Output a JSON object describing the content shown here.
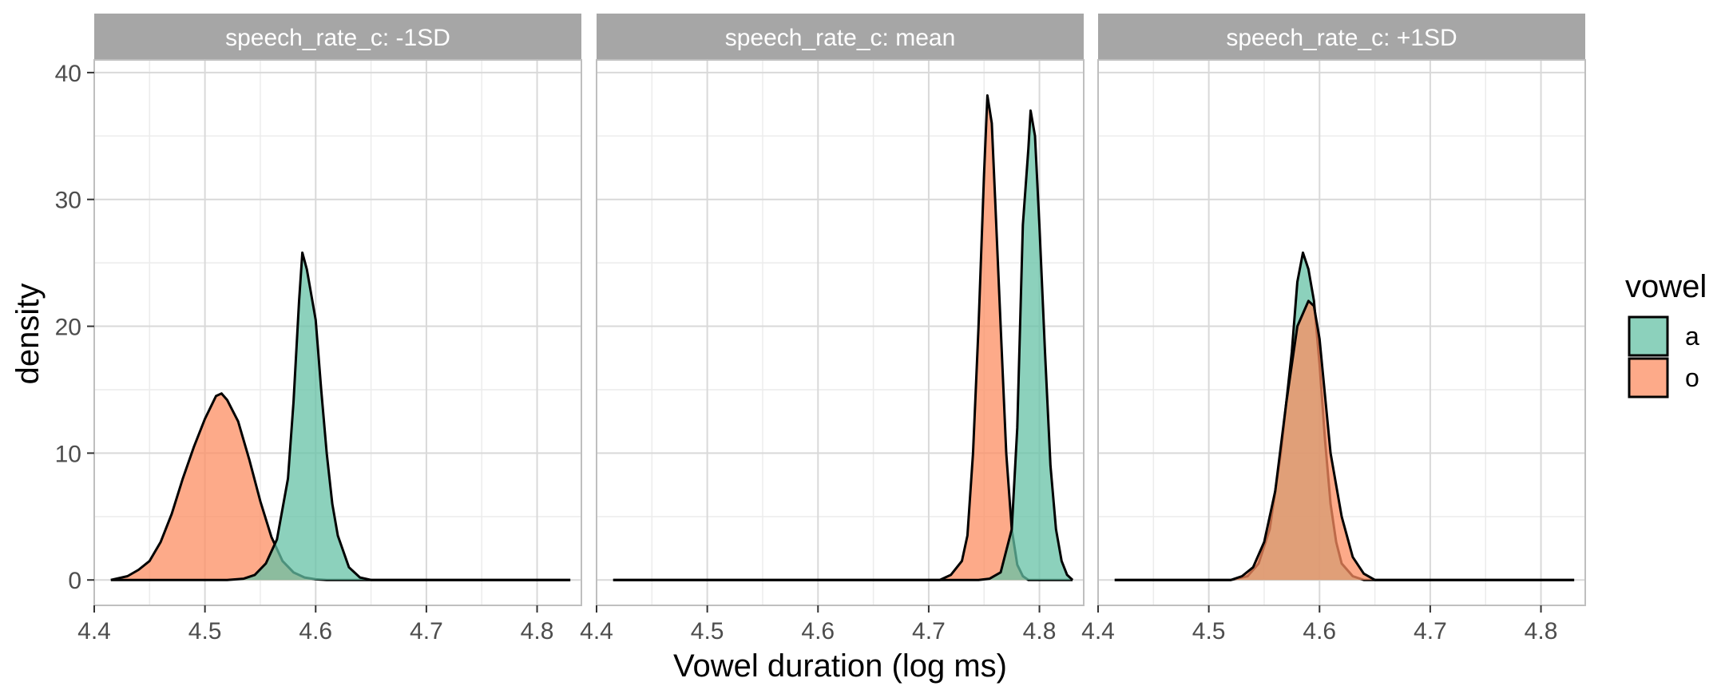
{
  "chart_data": {
    "type": "area",
    "kind": "density",
    "xlabel": "Vowel duration (log ms)",
    "ylabel": "density",
    "xlim": [
      4.4,
      4.84
    ],
    "ylim": [
      -2,
      41
    ],
    "xticks": [
      4.4,
      4.5,
      4.6,
      4.7,
      4.8
    ],
    "xtick_labels": [
      "4.4",
      "4.5",
      "4.6",
      "4.7",
      "4.8"
    ],
    "yticks": [
      0,
      10,
      20,
      30,
      40
    ],
    "ytick_labels": [
      "0",
      "10",
      "20",
      "30",
      "40"
    ],
    "grid": true,
    "legend": {
      "title": "vowel",
      "position": "right",
      "items": [
        {
          "label": "a",
          "color": "#66C2A5"
        },
        {
          "label": "o",
          "color": "#FC8D62"
        }
      ]
    },
    "panels": [
      {
        "strip": "speech_rate_c: -1SD",
        "series": [
          {
            "group": "o",
            "color": "#FC8D62",
            "points": [
              [
                4.415,
                0
              ],
              [
                4.43,
                0.3
              ],
              [
                4.44,
                0.8
              ],
              [
                4.45,
                1.5
              ],
              [
                4.46,
                3
              ],
              [
                4.47,
                5.2
              ],
              [
                4.48,
                8
              ],
              [
                4.49,
                10.5
              ],
              [
                4.5,
                12.7
              ],
              [
                4.51,
                14.5
              ],
              [
                4.515,
                14.7
              ],
              [
                4.52,
                14.2
              ],
              [
                4.53,
                12.5
              ],
              [
                4.54,
                9.5
              ],
              [
                4.55,
                6.2
              ],
              [
                4.56,
                3.4
              ],
              [
                4.57,
                1.5
              ],
              [
                4.58,
                0.6
              ],
              [
                4.59,
                0.2
              ],
              [
                4.6,
                0.05
              ],
              [
                4.61,
                0
              ],
              [
                4.83,
                0
              ]
            ]
          },
          {
            "group": "a",
            "color": "#66C2A5",
            "points": [
              [
                4.415,
                0
              ],
              [
                4.52,
                0
              ],
              [
                4.535,
                0.1
              ],
              [
                4.545,
                0.4
              ],
              [
                4.555,
                1.3
              ],
              [
                4.565,
                3.2
              ],
              [
                4.575,
                8
              ],
              [
                4.58,
                14
              ],
              [
                4.585,
                22
              ],
              [
                4.588,
                25.8
              ],
              [
                4.592,
                24.5
              ],
              [
                4.6,
                20.5
              ],
              [
                4.605,
                15
              ],
              [
                4.61,
                10
              ],
              [
                4.615,
                6
              ],
              [
                4.62,
                3.5
              ],
              [
                4.63,
                1
              ],
              [
                4.64,
                0.2
              ],
              [
                4.65,
                0
              ],
              [
                4.83,
                0
              ]
            ]
          }
        ]
      },
      {
        "strip": "speech_rate_c: mean",
        "series": [
          {
            "group": "o",
            "color": "#FC8D62",
            "points": [
              [
                4.415,
                0
              ],
              [
                4.71,
                0
              ],
              [
                4.72,
                0.4
              ],
              [
                4.73,
                1.5
              ],
              [
                4.735,
                3.5
              ],
              [
                4.74,
                10
              ],
              [
                4.745,
                20
              ],
              [
                4.75,
                32
              ],
              [
                4.753,
                38.2
              ],
              [
                4.757,
                36
              ],
              [
                4.76,
                30
              ],
              [
                4.765,
                20
              ],
              [
                4.77,
                10
              ],
              [
                4.775,
                4
              ],
              [
                4.78,
                1.2
              ],
              [
                4.785,
                0.3
              ],
              [
                4.79,
                0
              ],
              [
                4.83,
                0
              ]
            ]
          },
          {
            "group": "a",
            "color": "#66C2A5",
            "points": [
              [
                4.415,
                0
              ],
              [
                4.745,
                0
              ],
              [
                4.755,
                0.1
              ],
              [
                4.765,
                0.6
              ],
              [
                4.775,
                4
              ],
              [
                4.78,
                12
              ],
              [
                4.785,
                28
              ],
              [
                4.79,
                34
              ],
              [
                4.792,
                37
              ],
              [
                4.796,
                35
              ],
              [
                4.8,
                28
              ],
              [
                4.805,
                18
              ],
              [
                4.81,
                9
              ],
              [
                4.815,
                4
              ],
              [
                4.82,
                1.5
              ],
              [
                4.825,
                0.4
              ],
              [
                4.83,
                0
              ]
            ]
          }
        ]
      },
      {
        "strip": "speech_rate_c: +1SD",
        "series": [
          {
            "group": "a",
            "color": "#66C2A5",
            "points": [
              [
                4.415,
                0
              ],
              [
                4.52,
                0
              ],
              [
                4.535,
                0.3
              ],
              [
                4.545,
                1.3
              ],
              [
                4.555,
                4
              ],
              [
                4.565,
                10
              ],
              [
                4.575,
                18
              ],
              [
                4.58,
                23.5
              ],
              [
                4.585,
                25.8
              ],
              [
                4.59,
                24.5
              ],
              [
                4.595,
                22
              ],
              [
                4.6,
                17
              ],
              [
                4.605,
                11
              ],
              [
                4.61,
                6
              ],
              [
                4.615,
                3
              ],
              [
                4.62,
                1.3
              ],
              [
                4.63,
                0.3
              ],
              [
                4.64,
                0
              ],
              [
                4.83,
                0
              ]
            ]
          },
          {
            "group": "o",
            "color": "#FC8D62",
            "points": [
              [
                4.415,
                0
              ],
              [
                4.52,
                0
              ],
              [
                4.53,
                0.3
              ],
              [
                4.54,
                1
              ],
              [
                4.55,
                3
              ],
              [
                4.56,
                7
              ],
              [
                4.57,
                14
              ],
              [
                4.58,
                20
              ],
              [
                4.59,
                22
              ],
              [
                4.595,
                21.6
              ],
              [
                4.6,
                19
              ],
              [
                4.61,
                10
              ],
              [
                4.62,
                5
              ],
              [
                4.63,
                1.8
              ],
              [
                4.64,
                0.5
              ],
              [
                4.65,
                0
              ],
              [
                4.83,
                0
              ]
            ]
          }
        ]
      }
    ]
  }
}
